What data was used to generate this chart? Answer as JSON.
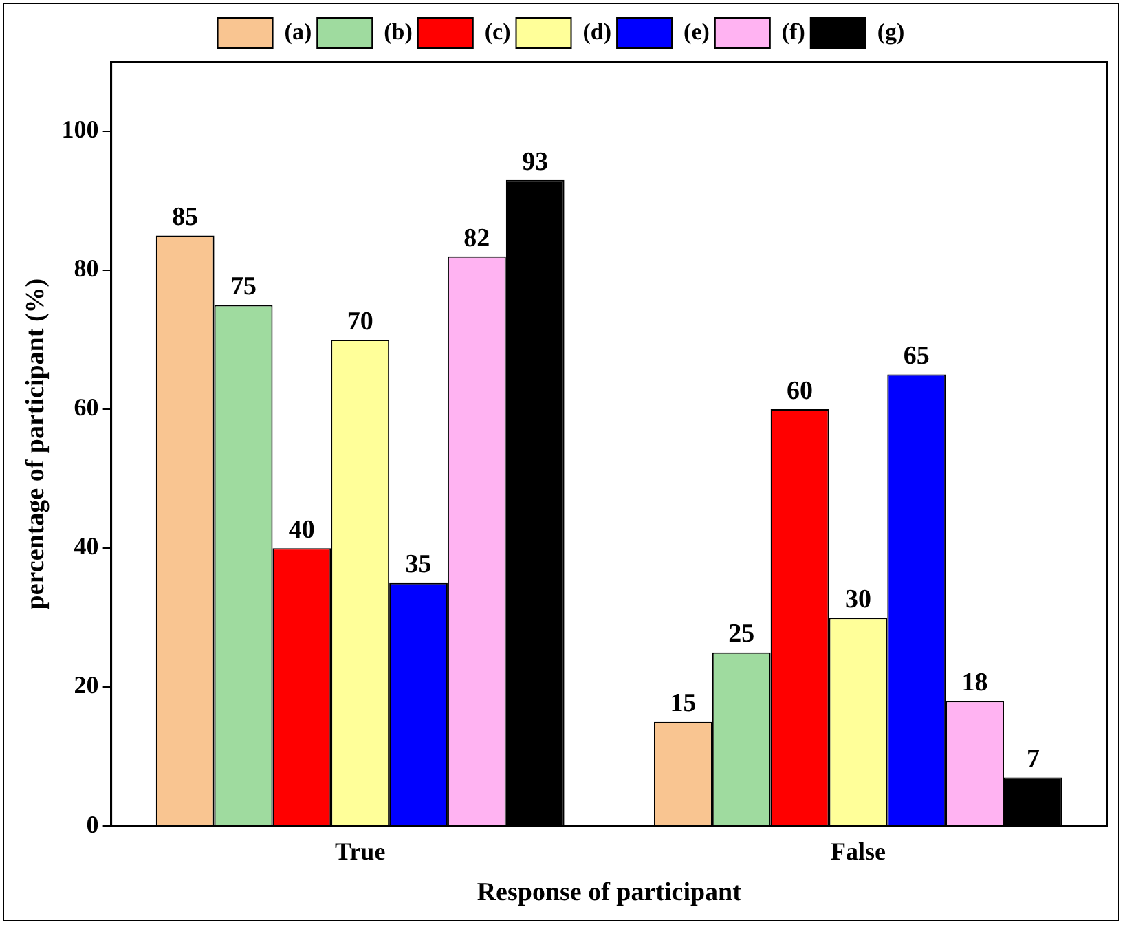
{
  "chart_data": {
    "type": "bar",
    "xlabel": "Response of participant",
    "ylabel": "percentage of participant (%)",
    "categories": [
      "True",
      "False"
    ],
    "series": [
      {
        "name": "(a)",
        "color": "#f9c591",
        "values": [
          85,
          15
        ]
      },
      {
        "name": "(b)",
        "color": "#9fdb9f",
        "values": [
          75,
          25
        ]
      },
      {
        "name": "(c)",
        "color": "#ff0000",
        "values": [
          40,
          60
        ]
      },
      {
        "name": "(d)",
        "color": "#ffff99",
        "values": [
          70,
          30
        ]
      },
      {
        "name": "(e)",
        "color": "#0000ff",
        "values": [
          35,
          65
        ]
      },
      {
        "name": "(f)",
        "color": "#ffb3f2",
        "values": [
          82,
          18
        ]
      },
      {
        "name": "(g)",
        "color": "#000000",
        "values": [
          93,
          7
        ]
      }
    ],
    "ylim": [
      0,
      110
    ],
    "yticks": [
      0,
      20,
      40,
      60,
      80,
      100
    ],
    "grid": false,
    "legend": "top",
    "data_labels": true
  }
}
